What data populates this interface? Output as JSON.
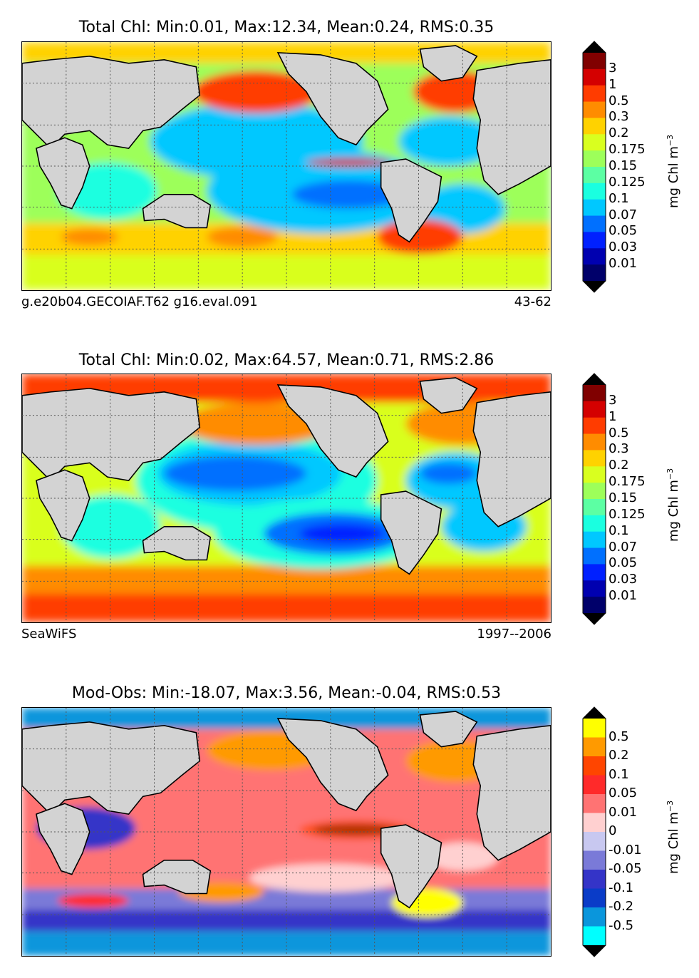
{
  "panels": [
    {
      "title": "Total Chl: Min:0.01, Max:12.34, Mean:0.24, RMS:0.35",
      "caption_left": "g.e20b04.GECOIAF.T62 g16.eval.091",
      "caption_right": "43-62",
      "colorbar": {
        "unit_label": "mg Chl m",
        "unit_exp": "−3",
        "ticks": [
          "3",
          "1",
          "0.5",
          "0.3",
          "0.2",
          "0.175",
          "0.15",
          "0.125",
          "0.1",
          "0.07",
          "0.05",
          "0.03",
          "0.01"
        ],
        "colors": [
          "#800000",
          "#d40000",
          "#ff3c00",
          "#ff8c00",
          "#ffd200",
          "#d9ff1f",
          "#9dff5a",
          "#5cffa3",
          "#1affe0",
          "#00c8ff",
          "#0070ff",
          "#0020ff",
          "#0000b0",
          "#00006a"
        ],
        "extend_top": "#000000",
        "extend_bottom": "#000000"
      }
    },
    {
      "title": "Total Chl: Min:0.02, Max:64.57, Mean:0.71, RMS:2.86",
      "caption_left": "SeaWiFS",
      "caption_right": "1997--2006",
      "colorbar": {
        "unit_label": "mg Chl m",
        "unit_exp": "−3",
        "ticks": [
          "3",
          "1",
          "0.5",
          "0.3",
          "0.2",
          "0.175",
          "0.15",
          "0.125",
          "0.1",
          "0.07",
          "0.05",
          "0.03",
          "0.01"
        ],
        "colors": [
          "#800000",
          "#d40000",
          "#ff3c00",
          "#ff8c00",
          "#ffd200",
          "#d9ff1f",
          "#9dff5a",
          "#5cffa3",
          "#1affe0",
          "#00c8ff",
          "#0070ff",
          "#0020ff",
          "#0000b0",
          "#00006a"
        ],
        "extend_top": "#000000",
        "extend_bottom": "#000000"
      }
    },
    {
      "title": "Mod-Obs: Min:-18.07, Max:3.56, Mean:-0.04, RMS:0.53",
      "caption_left": "",
      "caption_right": "",
      "colorbar": {
        "unit_label": "mg Chl m",
        "unit_exp": "−3",
        "ticks": [
          "0.5",
          "0.2",
          "0.1",
          "0.05",
          "0.01",
          "0",
          "-0.01",
          "-0.05",
          "-0.1",
          "-0.2",
          "-0.5"
        ],
        "colors": [
          "#ffff00",
          "#ff9a00",
          "#ff4500",
          "#ff2a2a",
          "#ff7373",
          "#ffd0d0",
          "#c8c8f0",
          "#7a7ad8",
          "#3434c8",
          "#0a3cc8",
          "#0a96dc",
          "#00ffff"
        ],
        "extend_top": "#000000",
        "extend_bottom": "#000000"
      }
    }
  ],
  "colors": {
    "land": "#d3d3d3",
    "coast": "#000000",
    "grid": "#555555"
  }
}
